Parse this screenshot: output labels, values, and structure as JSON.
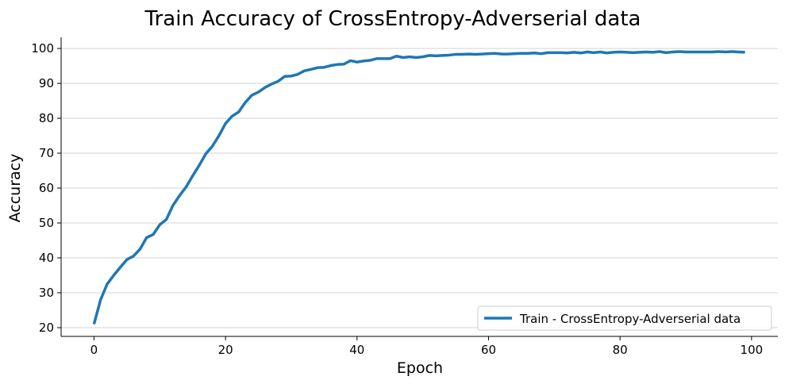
{
  "chart_data": {
    "type": "line",
    "title": "Train Accuracy of CrossEntropy-Adverserial data",
    "xlabel": "Epoch",
    "ylabel": "Accuracy",
    "xlim": [
      -5,
      104
    ],
    "ylim": [
      17.5,
      103.2
    ],
    "xticks": [
      0,
      20,
      40,
      60,
      80,
      100
    ],
    "yticks": [
      20,
      30,
      40,
      50,
      60,
      70,
      80,
      90,
      100
    ],
    "grid": "horizontal",
    "legend_position": "bottom-right",
    "series": [
      {
        "name": "Train - CrossEntropy-Adverserial data",
        "color": "#1f77b4",
        "x": [
          0,
          1,
          2,
          3,
          4,
          5,
          6,
          7,
          8,
          9,
          10,
          11,
          12,
          13,
          14,
          15,
          16,
          17,
          18,
          19,
          20,
          21,
          22,
          23,
          24,
          25,
          26,
          27,
          28,
          29,
          30,
          31,
          32,
          33,
          34,
          35,
          36,
          37,
          38,
          39,
          40,
          41,
          42,
          43,
          44,
          45,
          46,
          47,
          48,
          49,
          50,
          51,
          52,
          53,
          54,
          55,
          56,
          57,
          58,
          59,
          60,
          61,
          62,
          63,
          64,
          65,
          66,
          67,
          68,
          69,
          70,
          71,
          72,
          73,
          74,
          75,
          76,
          77,
          78,
          79,
          80,
          81,
          82,
          83,
          84,
          85,
          86,
          87,
          88,
          89,
          90,
          91,
          92,
          93,
          94,
          95,
          96,
          97,
          98,
          99
        ],
        "values": [
          21.0,
          28.0,
          32.5,
          35.0,
          37.3,
          39.5,
          40.5,
          42.5,
          45.8,
          46.7,
          49.5,
          51.0,
          55.0,
          57.8,
          60.3,
          63.5,
          66.5,
          69.8,
          72.0,
          75.0,
          78.5,
          80.6,
          81.8,
          84.5,
          86.6,
          87.5,
          88.8,
          89.8,
          90.6,
          92.0,
          92.1,
          92.6,
          93.6,
          94.0,
          94.5,
          94.6,
          95.1,
          95.4,
          95.5,
          96.5,
          96.1,
          96.4,
          96.6,
          97.1,
          97.1,
          97.1,
          97.8,
          97.4,
          97.6,
          97.4,
          97.6,
          98.0,
          97.9,
          98.0,
          98.1,
          98.3,
          98.3,
          98.4,
          98.3,
          98.4,
          98.5,
          98.6,
          98.4,
          98.4,
          98.5,
          98.6,
          98.6,
          98.7,
          98.5,
          98.8,
          98.8,
          98.8,
          98.7,
          98.9,
          98.7,
          99.0,
          98.8,
          99.0,
          98.7,
          98.9,
          99.0,
          98.9,
          98.8,
          98.9,
          99.0,
          98.9,
          99.1,
          98.8,
          99.0,
          99.1,
          99.0,
          99.0,
          99.0,
          99.0,
          99.0,
          99.1,
          99.0,
          99.1,
          99.0,
          98.9
        ]
      }
    ]
  }
}
